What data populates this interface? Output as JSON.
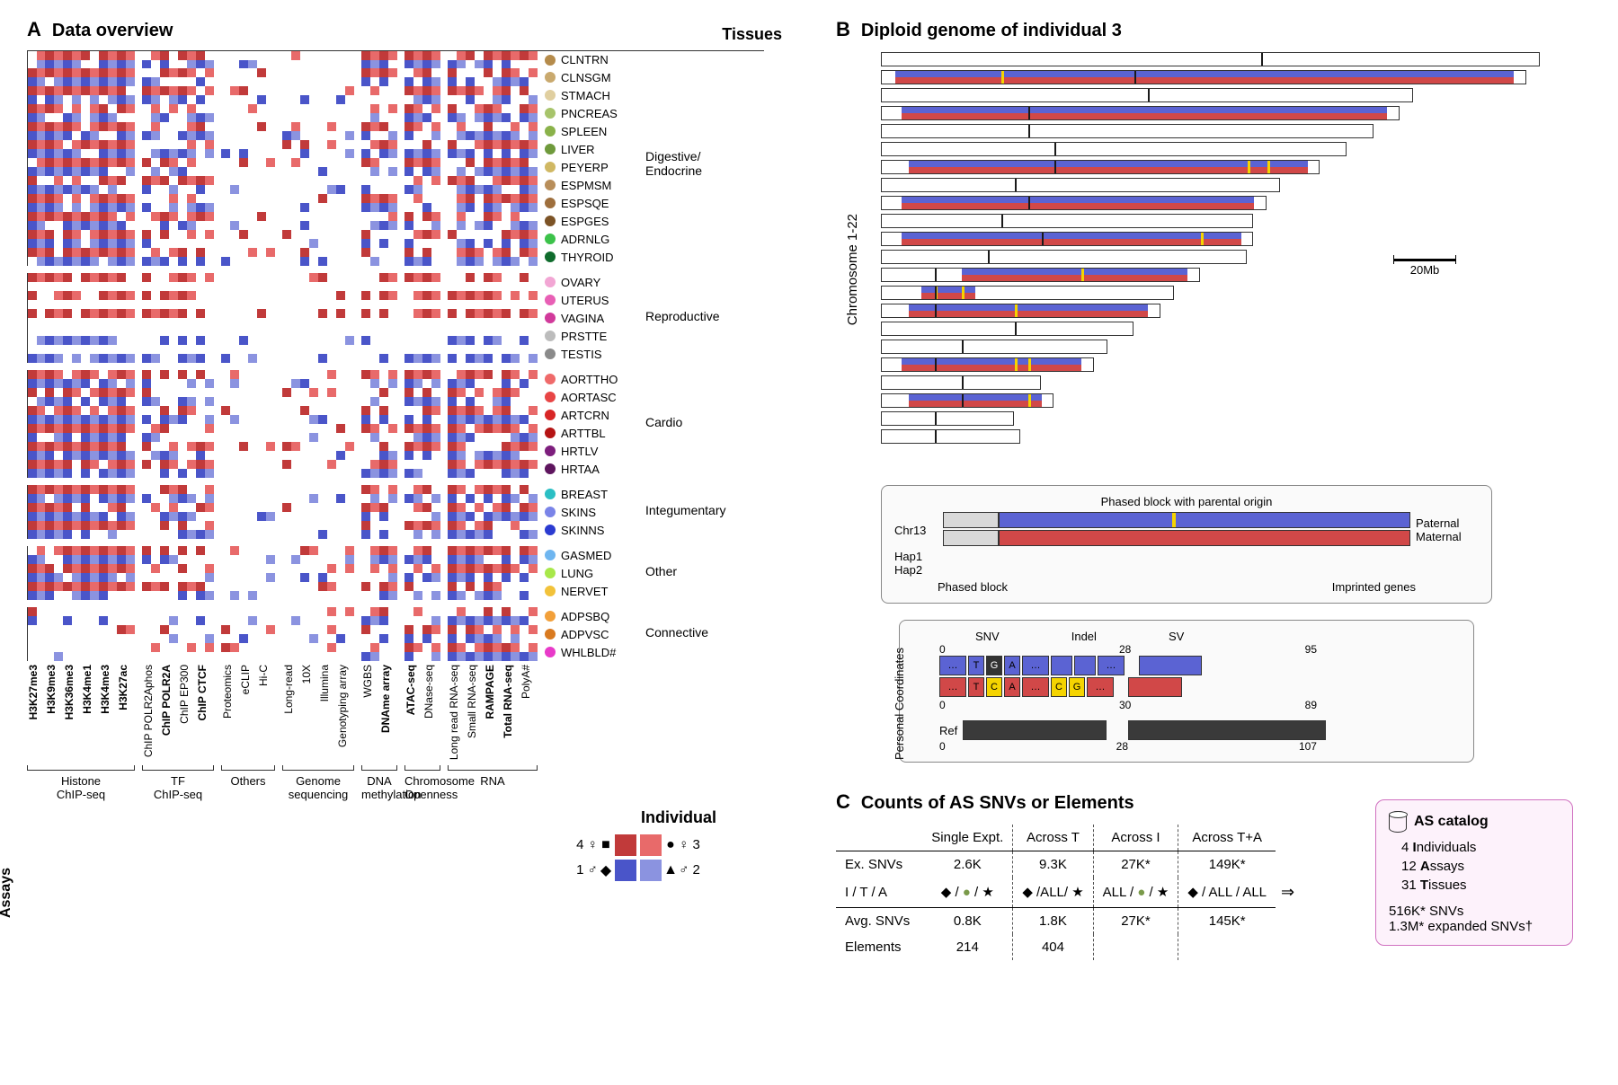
{
  "panelA": {
    "label": "A",
    "title": "Data overview",
    "tissues_header": "Tissues",
    "assays_header": "Assays",
    "colors": {
      "ind1": "#4a55c9",
      "ind2": "#8b93e0",
      "ind3": "#e86a6a",
      "ind4": "#c13a3a",
      "empty": "#ffffff"
    },
    "tissue_groups": [
      {
        "name": "Digestive/\nEndocrine",
        "tissues": [
          {
            "code": "CLNTRN",
            "color": "#b58b4b"
          },
          {
            "code": "CLNSGM",
            "color": "#c9a96e"
          },
          {
            "code": "STMACH",
            "color": "#e0cfa0"
          },
          {
            "code": "PNCREAS",
            "color": "#a7c46b"
          },
          {
            "code": "SPLEEN",
            "color": "#8ab24a"
          },
          {
            "code": "LIVER",
            "color": "#6f9a3c"
          },
          {
            "code": "PEYERP",
            "color": "#d0b863"
          },
          {
            "code": "ESPMSM",
            "color": "#b88e5a"
          },
          {
            "code": "ESPSQE",
            "color": "#9e6f3d"
          },
          {
            "code": "ESPGES",
            "color": "#7c5326"
          },
          {
            "code": "ADRNLG",
            "color": "#3cc24a"
          },
          {
            "code": "THYROID",
            "color": "#0f6b2c"
          }
        ]
      },
      {
        "name": "Reproductive",
        "tissues": [
          {
            "code": "OVARY",
            "color": "#f2a6d4"
          },
          {
            "code": "UTERUS",
            "color": "#e85fb5"
          },
          {
            "code": "VAGINA",
            "color": "#d13a9b"
          },
          {
            "code": "PRSTTE",
            "color": "#bcbcbc"
          },
          {
            "code": "TESTIS",
            "color": "#8a8a8a"
          }
        ]
      },
      {
        "name": "Cardio",
        "tissues": [
          {
            "code": "AORTTHO",
            "color": "#ef6a6a"
          },
          {
            "code": "AORTASC",
            "color": "#e84545"
          },
          {
            "code": "ARTCRN",
            "color": "#d82626"
          },
          {
            "code": "ARTTBL",
            "color": "#b51414"
          },
          {
            "code": "HRTLV",
            "color": "#7d1e7d"
          },
          {
            "code": "HRTAA",
            "color": "#5e155e"
          }
        ]
      },
      {
        "name": "Integumentary",
        "tissues": [
          {
            "code": "BREAST",
            "color": "#2bbfc4"
          },
          {
            "code": "SKINS",
            "color": "#7a84e8"
          },
          {
            "code": "SKINNS",
            "color": "#2b3bd1"
          }
        ]
      },
      {
        "name": "Other",
        "tissues": [
          {
            "code": "GASMED",
            "color": "#6fb6f0"
          },
          {
            "code": "LUNG",
            "color": "#a8e84a"
          },
          {
            "code": "NERVET",
            "color": "#f2c23a"
          }
        ]
      },
      {
        "name": "Connective",
        "tissues": [
          {
            "code": "ADPSBQ",
            "color": "#f2a03a"
          },
          {
            "code": "ADPVSC",
            "color": "#d97a1f"
          },
          {
            "code": "WHLBLD#",
            "color": "#e83ac9"
          }
        ]
      }
    ],
    "assay_groups": [
      {
        "name": "Histone\nChIP-seq",
        "assays": [
          {
            "label": "H3K27me3",
            "bold": true
          },
          {
            "label": "H3K9me3",
            "bold": true
          },
          {
            "label": "H3K36me3",
            "bold": true
          },
          {
            "label": "H3K4me1",
            "bold": true
          },
          {
            "label": "H3K4me3",
            "bold": true,
            "star": true
          },
          {
            "label": "H3K27ac",
            "bold": true
          }
        ]
      },
      {
        "name": "TF\nChIP-seq",
        "assays": [
          {
            "label": "ChIP POLR2Aphos"
          },
          {
            "label": "ChIP POLR2A",
            "bold": true
          },
          {
            "label": "ChIP EP300"
          },
          {
            "label": "ChIP CTCF",
            "bold": true
          }
        ]
      },
      {
        "name": "Others",
        "assays": [
          {
            "label": "Proteomics"
          },
          {
            "label": "eCLIP"
          },
          {
            "label": "Hi-C"
          }
        ]
      },
      {
        "name": "Genome\nsequencing",
        "assays": [
          {
            "label": "Long-read"
          },
          {
            "label": "10X"
          },
          {
            "label": "Illumina"
          },
          {
            "label": "Genotyping array"
          }
        ]
      },
      {
        "name": "DNA\nmethylation",
        "assays": [
          {
            "label": "WGBS"
          },
          {
            "label": "DNAme array",
            "bold": true
          }
        ]
      },
      {
        "name": "Chromosome\nOpenness",
        "assays": [
          {
            "label": "ATAC-seq",
            "bold": true
          },
          {
            "label": "DNase-seq"
          }
        ]
      },
      {
        "name": "RNA",
        "assays": [
          {
            "label": "Long read RNA-seq"
          },
          {
            "label": "Small RNA-seq"
          },
          {
            "label": "RAMPAGE",
            "bold": true
          },
          {
            "label": "Total RNA-seq",
            "bold": true
          },
          {
            "label": "PolyA#"
          }
        ]
      }
    ],
    "individual_legend": {
      "title": "Individual",
      "labels": {
        "tl": "4",
        "tr": "3",
        "bl": "1",
        "br": "2"
      },
      "sex": {
        "tl": "♀",
        "tr": "♀",
        "bl": "♂",
        "br": "♂"
      },
      "shape": {
        "tl": "■",
        "tr": "●",
        "bl": "◆",
        "br": "▲"
      },
      "colors": {
        "tl": "#c13a3a",
        "tr": "#e86a6a",
        "bl": "#4a55c9",
        "br": "#8b93e0"
      }
    }
  },
  "panelB": {
    "label": "B",
    "title": "Diploid genome of individual 3",
    "y_label": "Chromosome 1-22",
    "scale_label": "20Mb",
    "colors": {
      "paternal": "#5b63d3",
      "maternal": "#d14848",
      "imprint": "#f5d400",
      "centromere": "#1a1a1a",
      "ref": "#3a3a3a",
      "unphased": "#d9d9d9"
    },
    "chromosomes": [
      {
        "len": 0.99,
        "phased": false,
        "cent": 0.57
      },
      {
        "len": 0.97,
        "phased": true,
        "pstart": 0.02,
        "pend": 0.95,
        "imprints": [
          0.18
        ],
        "cent": 0.38
      },
      {
        "len": 0.8,
        "phased": false,
        "cent": 0.4
      },
      {
        "len": 0.78,
        "phased": true,
        "pstart": 0.03,
        "pend": 0.76,
        "imprints": [],
        "cent": 0.22
      },
      {
        "len": 0.74,
        "phased": false,
        "cent": 0.22
      },
      {
        "len": 0.7,
        "phased": false,
        "cent": 0.26
      },
      {
        "len": 0.66,
        "phased": true,
        "pstart": 0.04,
        "pend": 0.64,
        "imprints": [
          0.55,
          0.58
        ],
        "cent": 0.26
      },
      {
        "len": 0.6,
        "phased": false,
        "cent": 0.2
      },
      {
        "len": 0.58,
        "phased": true,
        "pstart": 0.03,
        "pend": 0.56,
        "imprints": [],
        "cent": 0.22
      },
      {
        "len": 0.56,
        "phased": false,
        "cent": 0.18
      },
      {
        "len": 0.56,
        "phased": true,
        "pstart": 0.03,
        "pend": 0.54,
        "imprints": [
          0.48
        ],
        "cent": 0.24
      },
      {
        "len": 0.55,
        "phased": false,
        "cent": 0.16
      },
      {
        "len": 0.48,
        "phased": true,
        "pstart": 0.12,
        "pend": 0.46,
        "imprints": [
          0.3
        ],
        "cent": 0.08
      },
      {
        "len": 0.44,
        "phased": true,
        "pstart": 0.06,
        "pend": 0.14,
        "imprints": [
          0.08,
          0.12
        ],
        "cent": 0.08
      },
      {
        "len": 0.42,
        "phased": true,
        "pstart": 0.04,
        "pend": 0.4,
        "imprints": [
          0.2
        ],
        "cent": 0.08
      },
      {
        "len": 0.38,
        "phased": false,
        "cent": 0.2
      },
      {
        "len": 0.34,
        "phased": false,
        "cent": 0.12
      },
      {
        "len": 0.32,
        "phased": true,
        "pstart": 0.03,
        "pend": 0.3,
        "imprints": [
          0.2,
          0.22
        ],
        "cent": 0.08
      },
      {
        "len": 0.24,
        "phased": false,
        "cent": 0.12
      },
      {
        "len": 0.26,
        "phased": true,
        "pstart": 0.04,
        "pend": 0.24,
        "imprints": [
          0.22
        ],
        "cent": 0.12
      },
      {
        "len": 0.2,
        "phased": false,
        "cent": 0.08
      },
      {
        "len": 0.21,
        "phased": false,
        "cent": 0.08
      }
    ],
    "phased_detail": {
      "chr": "Chr13",
      "hap1": "Hap1",
      "hap2": "Hap2",
      "phased_origin_label": "Phased block with parental origin",
      "paternal": "Paternal",
      "maternal": "Maternal",
      "phased_block_label": "Phased block",
      "imprinted_label": "Imprinted genes"
    },
    "coord_detail": {
      "y_label": "Personal\nCoordinates",
      "snv": "SNV",
      "indel": "Indel",
      "sv": "SV",
      "hap1_nums": [
        "0",
        "",
        "28",
        "",
        "95"
      ],
      "hap2_nums": [
        "0",
        "",
        "30",
        "",
        "89"
      ],
      "ref": "Ref",
      "ref_nums": [
        "0",
        "",
        "28",
        "",
        "107"
      ],
      "seq_top": [
        "…",
        "T",
        "G",
        "A",
        "…",
        "",
        "",
        "…"
      ],
      "seq_bot": [
        "…",
        "T",
        "C",
        "A",
        "…",
        "C",
        "G",
        "…"
      ]
    }
  },
  "panelC": {
    "label": "C",
    "title": "Counts of AS SNVs or Elements",
    "headers": [
      "Single Expt.",
      "Across T",
      "Across I",
      "Across T+A"
    ],
    "rows": [
      {
        "head": "Ex. SNVs",
        "cells": [
          "2.6K",
          "9.3K",
          "27K*",
          "149K*"
        ]
      },
      {
        "head": "I / T / A",
        "cells": [
          "◆ / ● / ★",
          "◆ /ALL/ ★",
          "ALL / ● / ★",
          "◆ / ALL / ALL"
        ],
        "sym": true
      },
      {
        "head": "Avg. SNVs",
        "cells": [
          "0.8K",
          "1.8K",
          "27K*",
          "145K*"
        ]
      },
      {
        "head": "Elements",
        "cells": [
          "214",
          "404",
          "",
          ""
        ]
      }
    ],
    "arrow": "⇒",
    "catalog": {
      "title": "AS catalog",
      "items": [
        "4 Individuals",
        "12 Assays",
        "31 Tissues"
      ],
      "foot": [
        "516K* SNVs",
        "1.3M* expanded SNVs†"
      ]
    }
  }
}
